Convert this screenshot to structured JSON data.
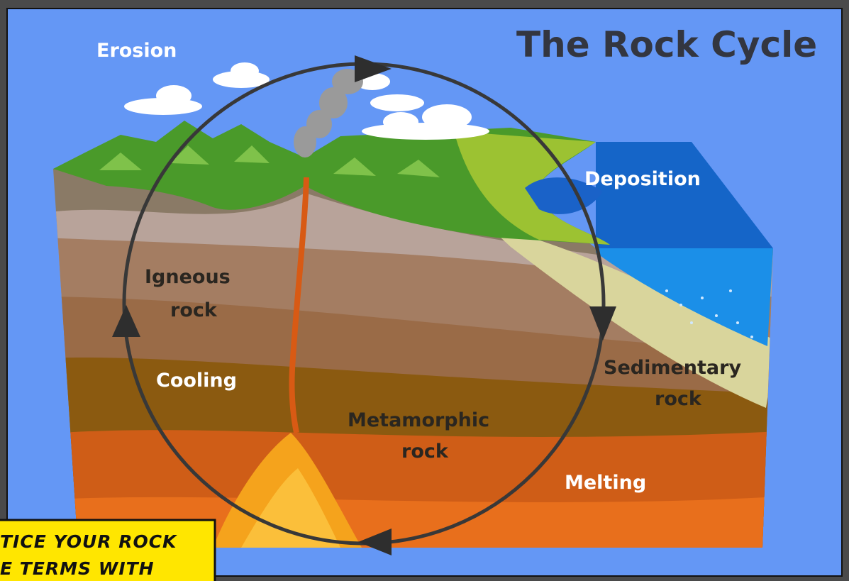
{
  "title": "The Rock Cycle",
  "labels": {
    "erosion": "Erosion",
    "deposition": "Deposition",
    "igneous_rock": [
      "Igneous",
      "rock"
    ],
    "cooling": "Cooling",
    "sedimentary_rock": [
      "Sedimentary",
      "rock"
    ],
    "metamorphic_rock": [
      "Metamorphic",
      "rock"
    ],
    "melting": "Melting"
  },
  "caption": [
    "TICE YOUR ROCK",
    "E TERMS WITH"
  ]
}
